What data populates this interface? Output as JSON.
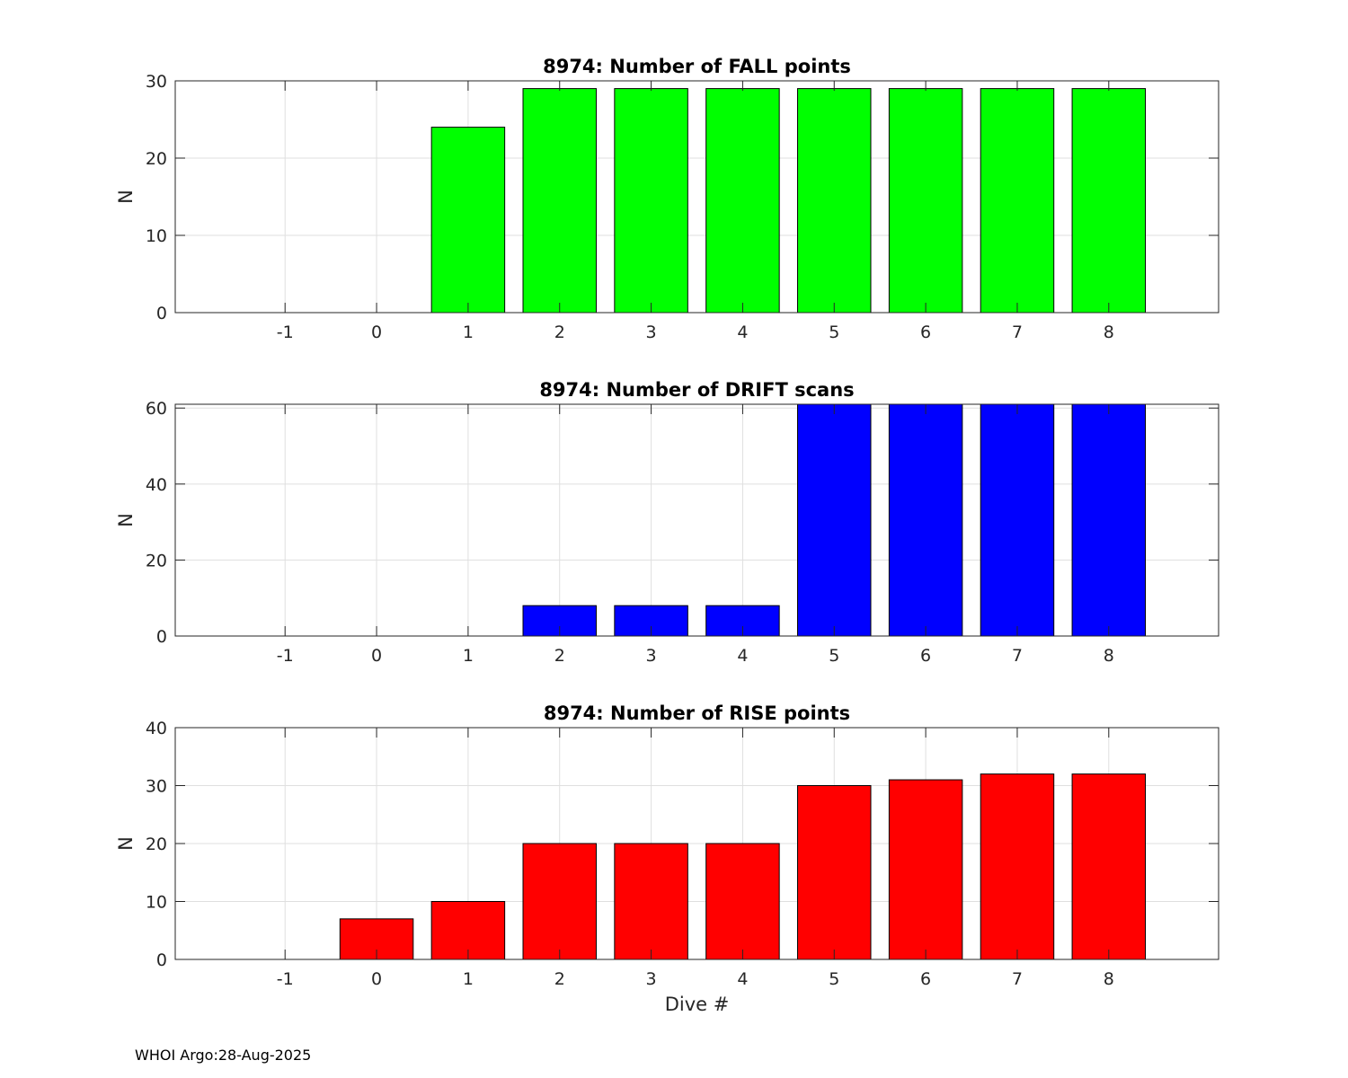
{
  "chart_data": [
    {
      "type": "bar",
      "title": "8974: Number of FALL points",
      "xlabel": "",
      "ylabel": "N",
      "categories": [
        -1,
        0,
        1,
        2,
        3,
        4,
        5,
        6,
        7,
        8
      ],
      "values": [
        0,
        0,
        24,
        29,
        29,
        29,
        29,
        29,
        29,
        29
      ],
      "xlim": [
        -2.2,
        9.2
      ],
      "ylim": [
        0,
        30
      ],
      "yticks": [
        0,
        10,
        20,
        30
      ],
      "color": "#00ff00",
      "grid": true
    },
    {
      "type": "bar",
      "title": "8974: Number of DRIFT scans",
      "xlabel": "",
      "ylabel": "N",
      "categories": [
        -1,
        0,
        1,
        2,
        3,
        4,
        5,
        6,
        7,
        8
      ],
      "values": [
        0,
        0,
        0,
        8,
        8,
        8,
        61,
        61,
        61,
        61
      ],
      "xlim": [
        -2.2,
        9.2
      ],
      "ylim": [
        0,
        61
      ],
      "yticks": [
        0,
        20,
        40,
        60
      ],
      "color": "#0000ff",
      "grid": true
    },
    {
      "type": "bar",
      "title": "8974: Number of RISE points",
      "xlabel": "Dive #",
      "ylabel": "N",
      "categories": [
        -1,
        0,
        1,
        2,
        3,
        4,
        5,
        6,
        7,
        8
      ],
      "values": [
        0,
        7,
        10,
        20,
        20,
        20,
        30,
        31,
        32,
        32
      ],
      "xlim": [
        -2.2,
        9.2
      ],
      "ylim": [
        0,
        40
      ],
      "yticks": [
        0,
        10,
        20,
        30,
        40
      ],
      "color": "#ff0000",
      "grid": true
    }
  ],
  "footer": {
    "text": "WHOI Argo:28-Aug-2025"
  }
}
